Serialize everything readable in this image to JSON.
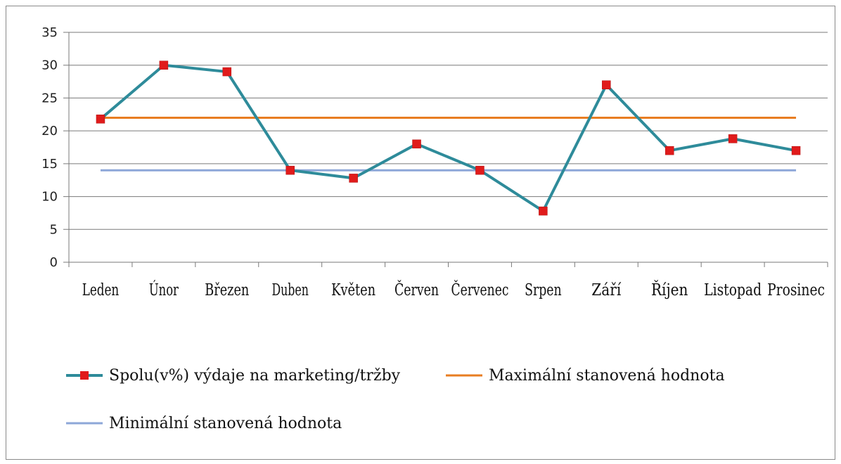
{
  "chart_data": {
    "type": "line",
    "categories": [
      "Leden",
      "Únor",
      "Březen",
      "Duben",
      "Květen",
      "Červen",
      "Červenec",
      "Srpen",
      "Září",
      "Říjen",
      "Listopad",
      "Prosinec"
    ],
    "ylim": [
      0,
      35
    ],
    "yticks": [
      0,
      5,
      10,
      15,
      20,
      25,
      30,
      35
    ],
    "grid": true,
    "legend_position": "bottom",
    "series": [
      {
        "name": "Spolu(v%) výdaje na marketing/tržby",
        "values": [
          21.8,
          30,
          29,
          14,
          12.8,
          18,
          14,
          7.8,
          27,
          17,
          18.8,
          17
        ],
        "color": "#2e8b9a",
        "marker": "square",
        "marker_color": "#e01b1b"
      },
      {
        "name": "Maximální stanovená hodnota",
        "values": [
          22,
          22,
          22,
          22,
          22,
          22,
          22,
          22,
          22,
          22,
          22,
          22
        ],
        "color": "#e87d22"
      },
      {
        "name": "Minimální stanovená hodnota",
        "values": [
          14,
          14,
          14,
          14,
          14,
          14,
          14,
          14,
          14,
          14,
          14,
          14
        ],
        "color": "#8da7d8"
      }
    ]
  }
}
